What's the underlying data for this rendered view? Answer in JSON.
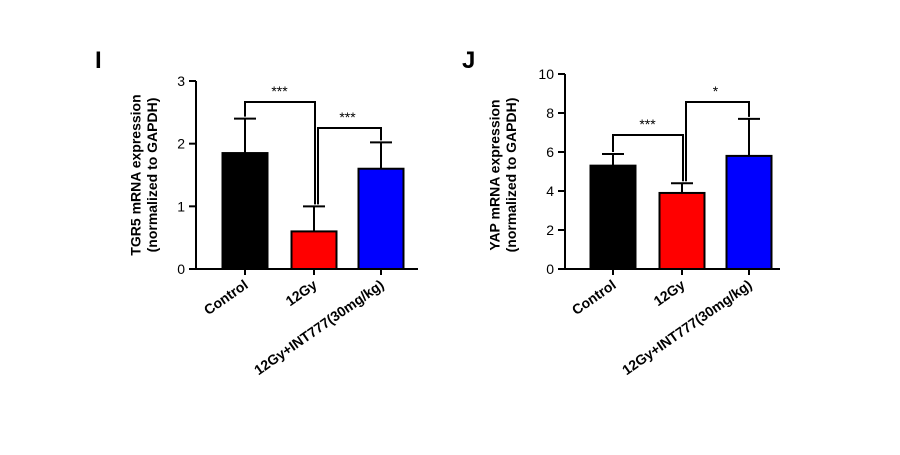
{
  "chart_data": [
    {
      "type": "bar",
      "panel": "I",
      "ylabel": "TGR5 mRNA expression\n(normalized to GAPDH)",
      "categories": [
        "Control",
        "12Gy",
        "12Gy+INT777(30mg/kg)"
      ],
      "values": [
        1.85,
        0.6,
        1.6
      ],
      "errors": [
        0.55,
        0.4,
        0.42
      ],
      "colors": [
        "#000000",
        "#ff0000",
        "#0000ff"
      ],
      "ylim": [
        0,
        3
      ],
      "yticks": [
        0,
        1,
        2,
        3
      ],
      "significance": [
        {
          "from": 0,
          "to": 1,
          "label": "***"
        },
        {
          "from": 1,
          "to": 2,
          "label": "***"
        }
      ]
    },
    {
      "type": "bar",
      "panel": "J",
      "ylabel": "YAP mRNA expression\n(normalized to GAPDH)",
      "categories": [
        "Control",
        "12Gy",
        "12Gy+INT777(30mg/kg)"
      ],
      "values": [
        5.3,
        3.9,
        5.8
      ],
      "errors": [
        0.6,
        0.5,
        1.9
      ],
      "colors": [
        "#000000",
        "#ff0000",
        "#0000ff"
      ],
      "ylim": [
        0,
        10
      ],
      "yticks": [
        0,
        2,
        4,
        6,
        8,
        10
      ],
      "significance": [
        {
          "from": 0,
          "to": 1,
          "label": "***"
        },
        {
          "from": 1,
          "to": 2,
          "label": "*"
        }
      ]
    }
  ]
}
